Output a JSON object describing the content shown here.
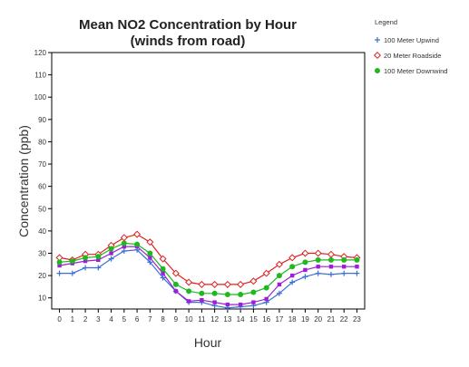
{
  "chart_data": {
    "type": "line",
    "title": "Mean NO2 Concentration by Hour",
    "subtitle": "(winds from road)",
    "xlabel": "Hour",
    "ylabel": "Concentration (ppb)",
    "xlim": [
      -0.6,
      23.6
    ],
    "ylim": [
      5,
      120
    ],
    "yticks": [
      10,
      20,
      30,
      40,
      50,
      60,
      70,
      80,
      90,
      100,
      110,
      120
    ],
    "x": [
      0,
      1,
      2,
      3,
      4,
      5,
      6,
      7,
      8,
      9,
      10,
      11,
      12,
      13,
      14,
      15,
      16,
      17,
      18,
      19,
      20,
      21,
      22,
      23
    ],
    "grid": false,
    "legend_title": "Legend",
    "legend_position": "top-right",
    "series": [
      {
        "name": "100 Meter Upwind",
        "color": "#3b6fd8",
        "marker": "plus",
        "values": [
          21,
          21,
          23.5,
          23.5,
          27.5,
          31,
          31.5,
          26,
          19,
          13,
          8,
          8,
          6.5,
          5.5,
          6,
          6.5,
          8,
          12,
          17,
          19.5,
          21,
          20.5,
          21,
          21
        ]
      },
      {
        "name": "",
        "color": "#9b1fd6",
        "marker": "square",
        "values": [
          24.5,
          25.5,
          26.5,
          27,
          30,
          33,
          33,
          28,
          21,
          13,
          8.5,
          9,
          8,
          7,
          7,
          8,
          9.5,
          16,
          20,
          22.5,
          24,
          24,
          24,
          24
        ]
      },
      {
        "name": "20 Meter Roadside",
        "color": "#e02020",
        "marker": "diamond-open",
        "values": [
          28,
          27,
          29.5,
          29.5,
          33.5,
          37,
          38.5,
          35,
          27.5,
          21,
          17,
          16,
          16,
          16,
          16,
          17.5,
          21,
          25,
          28,
          30,
          30,
          29.5,
          28.5,
          28
        ]
      },
      {
        "name": "100 Meter Downwind",
        "color": "#1fb81f",
        "marker": "circle",
        "values": [
          26,
          26.5,
          28,
          28.5,
          32,
          34.5,
          34,
          30,
          23,
          16,
          13,
          12,
          12,
          11.5,
          11.5,
          12.5,
          14.5,
          20,
          24,
          26,
          27,
          27,
          27,
          27
        ]
      }
    ]
  }
}
